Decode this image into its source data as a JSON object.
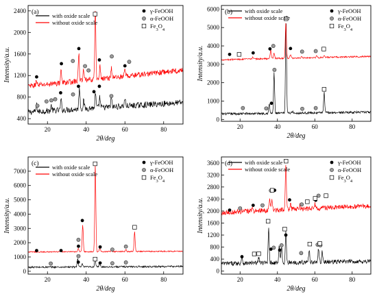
{
  "figure": {
    "panels": [
      "(a)",
      "(b)",
      "(c)",
      "(d)"
    ]
  },
  "chart_data": [
    {
      "type": "line",
      "panel_label": "(a)",
      "xlabel": "2θ/deg",
      "ylabel": "Intensity/a.u.",
      "xlim": [
        10,
        90
      ],
      "ylim": [
        300,
        2500
      ],
      "xticks": [
        20,
        40,
        60,
        80
      ],
      "yticks": [
        400,
        800,
        1200,
        1600,
        2000,
        2400
      ],
      "legend_position": "top",
      "series": [
        {
          "name": "with oxide scale",
          "color": "#000000",
          "baseline": 520,
          "noise": 55,
          "drift": 180,
          "peaks": [
            [
              14.4,
              120
            ],
            [
              22,
              90
            ],
            [
              27,
              200
            ],
            [
              36.5,
              420
            ],
            [
              38.7,
              150
            ],
            [
              44.8,
              260
            ],
            [
              47,
              200
            ],
            [
              53,
              190
            ],
            [
              60,
              140
            ]
          ]
        },
        {
          "name": "without oxide scale",
          "color": "#ff0000",
          "baseline": 1000,
          "noise": 50,
          "drift": 300,
          "peaks": [
            [
              14.3,
              110
            ],
            [
              27,
              250
            ],
            [
              36.2,
              500
            ],
            [
              38.6,
              180
            ],
            [
              44.7,
              1300
            ],
            [
              47.1,
              230
            ],
            [
              53,
              180
            ],
            [
              60,
              120
            ]
          ]
        }
      ],
      "markers": {
        "gamma": [
          [
            14.4,
            1175
          ],
          [
            27.2,
            1420
          ],
          [
            36.2,
            1700
          ],
          [
            46.8,
            1490
          ],
          [
            60,
            1380
          ],
          [
            44,
            900
          ],
          [
            26.8,
            880
          ],
          [
            36,
            1000
          ],
          [
            46.8,
            1000
          ]
        ],
        "alpha": [
          [
            19.5,
            720
          ],
          [
            22,
            740
          ],
          [
            24,
            760
          ],
          [
            33.1,
            1470
          ],
          [
            39.4,
            1375
          ],
          [
            41.2,
            1295
          ],
          [
            53.2,
            1555
          ],
          [
            62.2,
            1455
          ],
          [
            14.8,
            640
          ],
          [
            33.2,
            850
          ],
          [
            53,
            820
          ]
        ],
        "fe3o4": [
          [
            44.6,
            2340
          ]
        ]
      },
      "legend_markers": [
        "γ-FeOOH",
        "α-FeOOH",
        "Fe3O4"
      ]
    },
    {
      "type": "line",
      "panel_label": "(b)",
      "xlabel": "2θ/deg",
      "ylabel": "Intensity/a.u.",
      "xlim": [
        10,
        90
      ],
      "ylim": [
        -100,
        6200
      ],
      "xticks": [
        20,
        40,
        60,
        80
      ],
      "yticks": [
        0,
        1000,
        2000,
        3000,
        4000,
        5000,
        6000
      ],
      "legend_position": "top",
      "series": [
        {
          "name": "with oxide scale",
          "color": "#000000",
          "baseline": 300,
          "noise": 60,
          "drift": 100,
          "peaks": [
            [
              35.6,
              500
            ],
            [
              38.2,
              2200
            ],
            [
              44.6,
              5000
            ],
            [
              65,
              1100
            ],
            [
              48,
              120
            ]
          ]
        },
        {
          "name": "without oxide scale",
          "color": "#ff0000",
          "baseline": 3250,
          "noise": 40,
          "drift": 180,
          "peaks": [
            [
              26.8,
              120
            ],
            [
              36.4,
              500
            ],
            [
              38.2,
              300
            ],
            [
              44.5,
              1900
            ],
            [
              47,
              200
            ],
            [
              53,
              100
            ],
            [
              61,
              100
            ],
            [
              65,
              120
            ]
          ]
        }
      ],
      "markers": {
        "gamma": [
          [
            14.4,
            3540
          ],
          [
            27,
            3620
          ],
          [
            36,
            3840
          ],
          [
            47,
            3860
          ],
          [
            36.8,
            880
          ]
        ],
        "alpha": [
          [
            37.8,
            4000
          ],
          [
            53.2,
            3690
          ],
          [
            60.5,
            3720
          ],
          [
            38.4,
            2700
          ],
          [
            21.5,
            620
          ],
          [
            34,
            600
          ],
          [
            53.3,
            580
          ],
          [
            60.5,
            620
          ]
        ],
        "fe3o4": [
          [
            19.5,
            3540
          ],
          [
            44.6,
            5480
          ],
          [
            64.8,
            3830
          ],
          [
            65,
            1640
          ]
        ]
      },
      "legend_markers": [
        "γ-FeOOH",
        "α-FeOOH",
        "Fe3O4"
      ]
    },
    {
      "type": "line",
      "panel_label": "(c)",
      "xlabel": "2θ/deg",
      "ylabel": "Intensity/a.u.",
      "xlim": [
        10,
        90
      ],
      "ylim": [
        -200,
        8000
      ],
      "xticks": [
        20,
        40,
        60,
        80
      ],
      "yticks": [
        0,
        1000,
        2000,
        3000,
        4000,
        5000,
        6000,
        7000
      ],
      "legend_position": "top",
      "series": [
        {
          "name": "with oxide scale",
          "color": "#000000",
          "baseline": 280,
          "noise": 60,
          "drift": 60,
          "peaks": [
            [
              35.6,
              600
            ],
            [
              38,
              200
            ],
            [
              44.6,
              600
            ],
            [
              47,
              250
            ]
          ]
        },
        {
          "name": "without oxide scale",
          "color": "#ff0000",
          "baseline": 1350,
          "noise": 40,
          "drift": 50,
          "peaks": [
            [
              26.8,
              120
            ],
            [
              35.9,
              220
            ],
            [
              38.2,
              1900
            ],
            [
              44.7,
              6100
            ],
            [
              47,
              250
            ],
            [
              53,
              100
            ],
            [
              60.5,
              150
            ],
            [
              65,
              1400
            ]
          ]
        }
      ],
      "markers": {
        "gamma": [
          [
            14.4,
            1450
          ],
          [
            27,
            1450
          ],
          [
            36,
            1750
          ],
          [
            38,
            3550
          ],
          [
            47.2,
            1700
          ],
          [
            35.9,
            640
          ],
          [
            47.2,
            580
          ]
        ],
        "alpha": [
          [
            36,
            2200
          ],
          [
            53.5,
            1520
          ],
          [
            60.5,
            1730
          ],
          [
            21.7,
            540
          ],
          [
            36,
            1060
          ],
          [
            53.5,
            560
          ],
          [
            60.5,
            620
          ]
        ],
        "fe3o4": [
          [
            44.6,
            7520
          ],
          [
            65,
            3080
          ],
          [
            44.6,
            850
          ]
        ]
      },
      "legend_markers": [
        "γ-FeOOH",
        "α-FeOOH",
        "Fe3O4"
      ]
    },
    {
      "type": "line",
      "panel_label": "(d)",
      "xlabel": "2θ/deg",
      "ylabel": "Intensity/a.u.",
      "xlim": [
        10,
        90
      ],
      "ylim": [
        -100,
        3800
      ],
      "xticks": [
        20,
        40,
        60,
        80
      ],
      "yticks": [
        0,
        400,
        800,
        1200,
        1600,
        2000,
        2400,
        2800,
        3200,
        3600
      ],
      "legend_position": "top",
      "series": [
        {
          "name": "with oxide scale",
          "color": "#000000",
          "baseline": 250,
          "noise": 70,
          "drift": 80,
          "peaks": [
            [
              21,
              250
            ],
            [
              30,
              200
            ],
            [
              35.3,
              1200
            ],
            [
              41,
              600
            ],
            [
              42.2,
              550
            ],
            [
              44.5,
              1000
            ],
            [
              57,
              450
            ],
            [
              62,
              450
            ],
            [
              64,
              350
            ]
          ]
        },
        {
          "name": "without oxide scale",
          "color": "#ff0000",
          "baseline": 1950,
          "noise": 80,
          "drift": 220,
          "peaks": [
            [
              26.7,
              150
            ],
            [
              35.8,
              400
            ],
            [
              37,
              300
            ],
            [
              44.5,
              1500
            ],
            [
              47,
              200
            ],
            [
              52,
              150
            ],
            [
              60,
              150
            ]
          ]
        }
      ],
      "markers": {
        "gamma": [
          [
            14.4,
            2030
          ],
          [
            27,
            2190
          ],
          [
            38.5,
            2690
          ],
          [
            46.5,
            2370
          ],
          [
            60.5,
            2360
          ],
          [
            21,
            480
          ],
          [
            36.5,
            730
          ],
          [
            41.2,
            700
          ],
          [
            44.5,
            1200
          ]
        ],
        "alpha": [
          [
            20,
            2090
          ],
          [
            32,
            2190
          ],
          [
            36.5,
            2680
          ],
          [
            53,
            2220
          ],
          [
            62,
            2510
          ],
          [
            38,
            780
          ],
          [
            42.2,
            860
          ],
          [
            52.7,
            600
          ],
          [
            61.5,
            880
          ],
          [
            63,
            860
          ]
        ],
        "fe3o4": [
          [
            37.2,
            2690
          ],
          [
            44.6,
            3660
          ],
          [
            56,
            2310
          ],
          [
            60.2,
            2420
          ],
          [
            66,
            2510
          ],
          [
            35,
            1660
          ],
          [
            43.9,
            1400
          ],
          [
            27.6,
            570
          ],
          [
            30,
            580
          ],
          [
            57.3,
            900
          ],
          [
            62.7,
            920
          ]
        ]
      },
      "legend_markers": [
        "γ-FeOOH",
        "α-FeOOH",
        "Fe3O4"
      ]
    }
  ]
}
